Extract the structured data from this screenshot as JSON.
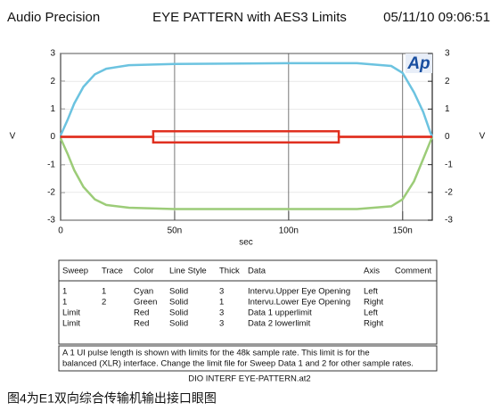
{
  "header": {
    "left": "Audio Precision",
    "date": "05/11/10 09:06:51"
  },
  "chart_data": {
    "type": "line",
    "title": "EYE PATTERN with AES3 Limits",
    "logo": "Ap",
    "xlabel": "sec",
    "ylabel": "V",
    "y2label": "V",
    "xlim": [
      0,
      1.63e-07
    ],
    "ylim": [
      -3,
      3
    ],
    "y2lim": [
      -3,
      3
    ],
    "xticks": [
      0,
      {
        "value": 5e-08,
        "label": "50n"
      },
      {
        "value": 1e-07,
        "label": "100n"
      },
      {
        "value": 1.5e-07,
        "label": "150n"
      }
    ],
    "yticks": [
      -3,
      -2,
      -1,
      0,
      1,
      2,
      3
    ],
    "y2ticks": [
      -3,
      -2,
      -1,
      0,
      1,
      2,
      3
    ],
    "grid": true,
    "series": [
      {
        "color": "#6cc3e0",
        "x": [
          0,
          3e-09,
          6e-09,
          1e-08,
          1.5e-08,
          2e-08,
          3e-08,
          5e-08,
          1e-07,
          1.3e-07,
          1.45e-07,
          1.5e-07,
          1.55e-07,
          1.59e-07,
          1.62e-07,
          1.63e-07
        ],
        "values": [
          0.05,
          0.6,
          1.2,
          1.8,
          2.25,
          2.45,
          2.58,
          2.62,
          2.65,
          2.65,
          2.55,
          2.3,
          1.6,
          0.9,
          0.2,
          0
        ]
      },
      {
        "color": "#9ccc78",
        "axis": "y2",
        "x": [
          0,
          3e-09,
          6e-09,
          1e-08,
          1.5e-08,
          2e-08,
          3e-08,
          5e-08,
          1e-07,
          1.3e-07,
          1.45e-07,
          1.5e-07,
          1.55e-07,
          1.59e-07,
          1.62e-07,
          1.63e-07
        ],
        "values": [
          -0.05,
          -0.6,
          -1.2,
          -1.8,
          -2.25,
          -2.45,
          -2.55,
          -2.6,
          -2.6,
          -2.6,
          -2.5,
          -2.25,
          -1.6,
          -0.8,
          -0.2,
          0
        ]
      },
      {
        "color": "#e03020",
        "x": [
          0,
          4.06e-08,
          4.06e-08,
          1.22e-07,
          1.22e-07,
          1.63e-07
        ],
        "values": [
          0,
          0,
          0.2,
          0.2,
          0,
          0
        ]
      },
      {
        "color": "#e03020",
        "x": [
          0,
          4.06e-08,
          4.06e-08,
          1.22e-07,
          1.22e-07,
          1.63e-07
        ],
        "values": [
          0,
          0,
          -0.2,
          -0.2,
          0,
          0
        ]
      }
    ]
  },
  "table": {
    "columns": [
      "Sweep",
      "Trace",
      "Color",
      "Line Style",
      "Thick",
      "Data",
      "Axis",
      "Comment"
    ],
    "rows": [
      [
        "1",
        "1",
        "Cyan",
        "Solid",
        "3",
        "Intervu.Upper Eye Opening",
        "Left"
      ],
      [
        "1",
        "2",
        "Green",
        "Solid",
        "1",
        "Intervu.Lower Eye Opening",
        "Right"
      ],
      [
        "Limit",
        "",
        "Red",
        "Solid",
        "3",
        "Data 1 upperlimit",
        "Left"
      ],
      [
        "Limit",
        "",
        "Red",
        "Solid",
        "3",
        "Data 2 lowerlimit",
        "Right"
      ]
    ]
  },
  "note": [
    "A 1 UI pulse length is shown with limits for the 48k sample rate.  This limit is for the",
    "balanced (XLR) interface.  Change the limit file for Sweep Data 1 and 2 for other sample rates."
  ],
  "footer": "DIO INTERF EYE-PATTERN.at2",
  "caption": "图4为E1双向综合传输机输出接口眼图"
}
